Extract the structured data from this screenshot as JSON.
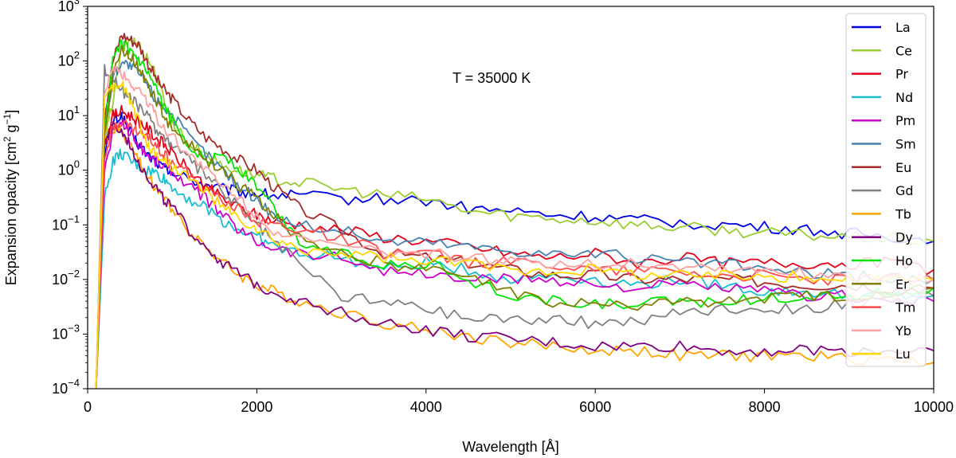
{
  "chart_data": {
    "type": "line",
    "xlabel": "Wavelength [Å]",
    "ylabel": "Expansion opacity [cm² g⁻¹]",
    "ylabel_parts": {
      "pre": "Expansion opacity [cm",
      "sup1": "2",
      "mid": " g",
      "sup2": "−1",
      "post": "]"
    },
    "annotation": "T = 35000 K",
    "xlim": [
      0,
      10000
    ],
    "ylim": [
      0.0001,
      1000
    ],
    "yscale": "log",
    "grid": false,
    "legend_position": "top-right",
    "x_ticks": [
      "0",
      "2000",
      "4000",
      "6000",
      "8000",
      "10000"
    ],
    "y_ticks": [
      {
        "base": "10",
        "exp": "−4"
      },
      {
        "base": "10",
        "exp": "−3"
      },
      {
        "base": "10",
        "exp": "−2"
      },
      {
        "base": "10",
        "exp": "−1"
      },
      {
        "base": "10",
        "exp": "0"
      },
      {
        "base": "10",
        "exp": "1"
      },
      {
        "base": "10",
        "exp": "2"
      },
      {
        "base": "10",
        "exp": "3"
      }
    ],
    "x": [
      100,
      200,
      300,
      400,
      500,
      600,
      700,
      800,
      900,
      1000,
      1200,
      1400,
      1600,
      1800,
      2000,
      2200,
      2500,
      3000,
      3500,
      4000,
      4500,
      5000,
      5500,
      6000,
      6500,
      7000,
      7500,
      8000,
      8500,
      9000,
      9500,
      10000
    ],
    "series": [
      {
        "name": "La",
        "color": "#0000e6",
        "values": [
          0.0001,
          2,
          8,
          10,
          5,
          3,
          2,
          1.5,
          1.1,
          0.9,
          0.7,
          0.55,
          0.45,
          0.4,
          0.38,
          0.35,
          0.35,
          0.3,
          0.3,
          0.28,
          0.2,
          0.18,
          0.15,
          0.14,
          0.12,
          0.11,
          0.1,
          0.09,
          0.08,
          0.07,
          0.06,
          0.05
        ]
      },
      {
        "name": "Ce",
        "color": "#9acd32",
        "values": [
          0.0001,
          3,
          20,
          150,
          250,
          200,
          120,
          60,
          20,
          8,
          3,
          2,
          1.2,
          1,
          0.8,
          0.7,
          0.6,
          0.45,
          0.35,
          0.3,
          0.18,
          0.15,
          0.13,
          0.12,
          0.1,
          0.09,
          0.08,
          0.07,
          0.065,
          0.06,
          0.055,
          0.05
        ]
      },
      {
        "name": "Pr",
        "color": "#e6001a",
        "values": [
          0.0001,
          3,
          10,
          12,
          10,
          8,
          6,
          4,
          3,
          2,
          1,
          0.5,
          0.3,
          0.2,
          0.15,
          0.12,
          0.1,
          0.08,
          0.06,
          0.05,
          0.04,
          0.03,
          0.025,
          0.03,
          0.02,
          0.025,
          0.02,
          0.02,
          0.02,
          0.02,
          0.02,
          0.015
        ]
      },
      {
        "name": "Nd",
        "color": "#17becf",
        "values": [
          0.0001,
          0.3,
          1.5,
          2,
          1.5,
          1.2,
          1,
          0.9,
          0.7,
          0.5,
          0.3,
          0.2,
          0.12,
          0.08,
          0.06,
          0.04,
          0.03,
          0.025,
          0.015,
          0.02,
          0.015,
          0.01,
          0.012,
          0.01,
          0.008,
          0.01,
          0.008,
          0.006,
          0.006,
          0.005,
          0.005,
          0.005
        ]
      },
      {
        "name": "Pm",
        "color": "#cc00cc",
        "values": [
          0.0001,
          1,
          5,
          8,
          5,
          3,
          2,
          1.5,
          1.2,
          1,
          0.5,
          0.3,
          0.15,
          0.08,
          0.05,
          0.04,
          0.03,
          0.025,
          0.015,
          0.012,
          0.01,
          0.01,
          0.01,
          0.008,
          0.007,
          0.008,
          0.007,
          0.006,
          0.005,
          0.005,
          0.004,
          0.004
        ]
      },
      {
        "name": "Sm",
        "color": "#4682b4",
        "values": [
          0.0001,
          5,
          50,
          100,
          80,
          60,
          40,
          20,
          15,
          10,
          4,
          2,
          1,
          0.5,
          0.3,
          0.15,
          0.1,
          0.08,
          0.05,
          0.05,
          0.04,
          0.035,
          0.03,
          0.03,
          0.025,
          0.02,
          0.02,
          0.015,
          0.013,
          0.012,
          0.01,
          0.01
        ]
      },
      {
        "name": "Eu",
        "color": "#a52a2a",
        "values": [
          0.0001,
          10,
          100,
          300,
          250,
          200,
          100,
          50,
          30,
          20,
          8,
          4,
          2.5,
          1.5,
          1,
          0.5,
          0.2,
          0.08,
          0.03,
          0.025,
          0.02,
          0.015,
          0.012,
          0.012,
          0.01,
          0.01,
          0.01,
          0.009,
          0.008,
          0.008,
          0.007,
          0.007
        ]
      },
      {
        "name": "Gd",
        "color": "#808080",
        "values": [
          0.0001,
          70,
          50,
          30,
          20,
          15,
          10,
          6,
          4,
          3,
          1.5,
          0.8,
          0.4,
          0.2,
          0.1,
          0.05,
          0.02,
          0.005,
          0.004,
          0.003,
          0.002,
          0.002,
          0.0018,
          0.0016,
          0.0018,
          0.0025,
          0.003,
          0.003,
          0.003,
          0.0035,
          0.004,
          0.005
        ]
      },
      {
        "name": "Tb",
        "color": "#ffa500",
        "values": [
          0.0001,
          3,
          6,
          5,
          3,
          1.5,
          0.8,
          0.5,
          0.3,
          0.2,
          0.08,
          0.04,
          0.02,
          0.012,
          0.008,
          0.006,
          0.004,
          0.0025,
          0.0016,
          0.0012,
          0.0009,
          0.0007,
          0.0006,
          0.0005,
          0.0005,
          0.0004,
          0.0004,
          0.0004,
          0.0004,
          0.00035,
          0.00035,
          0.0003
        ]
      },
      {
        "name": "Dy",
        "color": "#800080",
        "values": [
          0.0001,
          3,
          6,
          5,
          3,
          1.5,
          0.8,
          0.5,
          0.3,
          0.2,
          0.08,
          0.04,
          0.02,
          0.012,
          0.008,
          0.006,
          0.004,
          0.0025,
          0.0016,
          0.0012,
          0.0009,
          0.0008,
          0.0007,
          0.0006,
          0.0006,
          0.0006,
          0.0005,
          0.0005,
          0.0005,
          0.0005,
          0.0005,
          0.0005
        ]
      },
      {
        "name": "Ho",
        "color": "#00e600",
        "values": [
          0.0001,
          5,
          100,
          200,
          150,
          100,
          60,
          30,
          15,
          8,
          3,
          1.5,
          2,
          1,
          0.5,
          0.2,
          0.05,
          0.03,
          0.02,
          0.02,
          0.01,
          0.005,
          0.004,
          0.0035,
          0.0035,
          0.004,
          0.004,
          0.0045,
          0.005,
          0.005,
          0.006,
          0.007
        ]
      },
      {
        "name": "Er",
        "color": "#808000",
        "values": [
          0.0001,
          5,
          60,
          150,
          120,
          80,
          40,
          20,
          10,
          6,
          3,
          1.5,
          1,
          0.5,
          0.3,
          0.15,
          0.06,
          0.03,
          0.02,
          0.015,
          0.01,
          0.006,
          0.004,
          0.0035,
          0.0035,
          0.004,
          0.004,
          0.0045,
          0.005,
          0.005,
          0.006,
          0.007
        ]
      },
      {
        "name": "Tm",
        "color": "#ff4d4d",
        "values": [
          0.0001,
          2,
          6,
          8,
          6,
          5,
          4,
          3,
          2,
          1.5,
          0.8,
          0.4,
          0.3,
          0.2,
          0.12,
          0.1,
          0.08,
          0.06,
          0.03,
          0.03,
          0.02,
          0.02,
          0.02,
          0.015,
          0.015,
          0.015,
          0.012,
          0.012,
          0.01,
          0.01,
          0.01,
          0.01
        ]
      },
      {
        "name": "Yb",
        "color": "#ffa0a0",
        "values": [
          0.0001,
          20,
          80,
          60,
          40,
          30,
          20,
          10,
          6,
          4,
          2,
          1,
          0.5,
          0.3,
          0.15,
          0.08,
          0.05,
          0.04,
          0.03,
          0.03,
          0.025,
          0.02,
          0.02,
          0.02,
          0.02,
          0.018,
          0.016,
          0.015,
          0.013,
          0.012,
          0.01,
          0.01
        ]
      },
      {
        "name": "Lu",
        "color": "#ffd700",
        "values": [
          0.0001,
          20,
          30,
          40,
          20,
          8,
          3,
          2,
          1.5,
          1.2,
          0.7,
          0.4,
          0.2,
          0.12,
          0.08,
          0.05,
          0.035,
          0.03,
          0.025,
          0.02,
          0.02,
          0.015,
          0.015,
          0.015,
          0.013,
          0.012,
          0.012,
          0.012,
          0.011,
          0.01,
          0.01,
          0.01
        ]
      }
    ]
  }
}
